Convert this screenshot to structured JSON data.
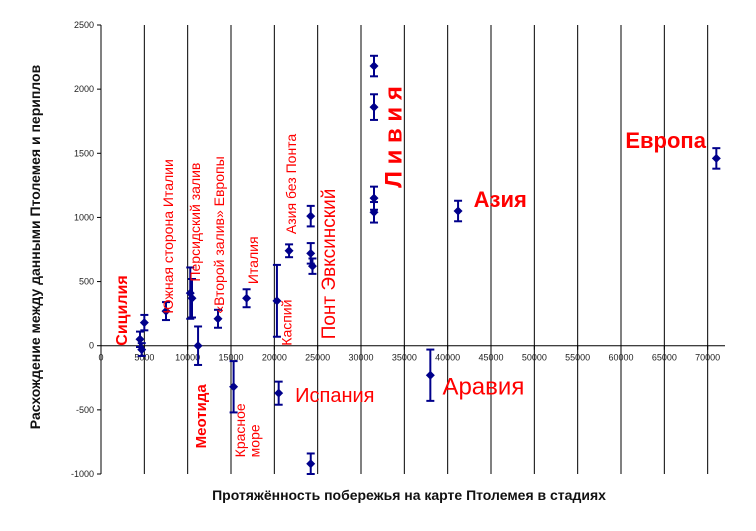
{
  "chart_data": {
    "type": "scatter",
    "xlabel": "Протяжённость побережья на карте Птолемея в стадиях",
    "ylabel": "Расхождение между данными Птолемея и периплов",
    "xlim": [
      0,
      72000
    ],
    "ylim": [
      -1000,
      2500
    ],
    "x_ticks": [
      0,
      5000,
      10000,
      15000,
      20000,
      25000,
      30000,
      35000,
      40000,
      45000,
      50000,
      55000,
      60000,
      65000,
      70000
    ],
    "y_ticks": [
      -1000,
      -500,
      0,
      500,
      1000,
      1500,
      2000,
      2500
    ],
    "x_tick_labels": [
      "0",
      "5000",
      "10000",
      "15000",
      "20000",
      "25000",
      "30000",
      "35000",
      "40000",
      "45000",
      "50000",
      "55000",
      "60000",
      "65000",
      "70000"
    ],
    "y_tick_labels": [
      "-1000",
      "-500",
      "0",
      "500",
      "1000",
      "1500",
      "2000",
      "2500"
    ],
    "grid": "vertical",
    "marker_color": "#00008b",
    "annotation_color": "#ff0000",
    "points": [
      {
        "x": 4500,
        "y": 50,
        "err": 60
      },
      {
        "x": 4700,
        "y": -30,
        "err": 50
      },
      {
        "x": 5000,
        "y": 180,
        "err": 60
      },
      {
        "x": 7500,
        "y": 270,
        "err": 70
      },
      {
        "x": 10300,
        "y": 410,
        "err": 200
      },
      {
        "x": 10500,
        "y": 370,
        "err": 150
      },
      {
        "x": 11200,
        "y": 0,
        "err": 150
      },
      {
        "x": 13500,
        "y": 210,
        "err": 70
      },
      {
        "x": 15300,
        "y": -320,
        "err": 200
      },
      {
        "x": 16800,
        "y": 370,
        "err": 70
      },
      {
        "x": 20300,
        "y": 350,
        "err": 280
      },
      {
        "x": 20500,
        "y": -370,
        "err": 90
      },
      {
        "x": 21700,
        "y": 740,
        "err": 50
      },
      {
        "x": 24200,
        "y": 1010,
        "err": 80
      },
      {
        "x": 24200,
        "y": 720,
        "err": 80
      },
      {
        "x": 24400,
        "y": 620,
        "err": 60
      },
      {
        "x": 24200,
        "y": -920,
        "err": 80
      },
      {
        "x": 31500,
        "y": 2180,
        "err": 80
      },
      {
        "x": 31500,
        "y": 1860,
        "err": 100
      },
      {
        "x": 31500,
        "y": 1150,
        "err": 90
      },
      {
        "x": 31500,
        "y": 1040,
        "err": 80
      },
      {
        "x": 38000,
        "y": -230,
        "err": 200
      },
      {
        "x": 41200,
        "y": 1050,
        "err": 80
      },
      {
        "x": 71000,
        "y": 1460,
        "err": 80
      }
    ],
    "annotations": [
      {
        "text": "Сицилия",
        "x": 3000,
        "y": 0,
        "rotate": true,
        "size": 16,
        "weight": "bold"
      },
      {
        "text": "Южная сторона Италии",
        "x": 8300,
        "y": 250,
        "rotate": true,
        "size": 14,
        "weight": "normal"
      },
      {
        "text": "Персидский залив",
        "x": 11400,
        "y": 500,
        "rotate": true,
        "size": 14,
        "weight": "normal"
      },
      {
        "text": "«Второй залив» Европы",
        "x": 14200,
        "y": 250,
        "rotate": true,
        "size": 14,
        "weight": "normal"
      },
      {
        "text": "Меотида",
        "x": 12100,
        "y": -800,
        "rotate": true,
        "size": 15,
        "weight": "bold"
      },
      {
        "text": "Красное",
        "x": 16600,
        "y": -870,
        "rotate": true,
        "size": 14,
        "weight": "normal"
      },
      {
        "text": "море",
        "x": 18300,
        "y": -870,
        "rotate": true,
        "size": 14,
        "weight": "normal"
      },
      {
        "text": "Италия",
        "x": 18100,
        "y": 480,
        "rotate": true,
        "size": 14,
        "weight": "normal"
      },
      {
        "text": "Азия без Понта",
        "x": 22500,
        "y": 870,
        "rotate": true,
        "size": 14,
        "weight": "normal"
      },
      {
        "text": "Каспий",
        "x": 22000,
        "y": 0,
        "rotate": true,
        "size": 14,
        "weight": "normal"
      },
      {
        "text": "Понт Эвксинский",
        "x": 27000,
        "y": 50,
        "rotate": true,
        "size": 19,
        "weight": "normal"
      },
      {
        "text": "Л и в и я",
        "x": 34700,
        "y": 1230,
        "rotate": true,
        "size": 24,
        "weight": "bold"
      },
      {
        "text": "Испания",
        "x": 22400,
        "y": -440,
        "rotate": false,
        "size": 20,
        "weight": "normal"
      },
      {
        "text": "Аравия",
        "x": 39400,
        "y": -380,
        "rotate": false,
        "size": 24,
        "weight": "normal"
      },
      {
        "text": "Азия",
        "x": 43000,
        "y": 1080,
        "rotate": false,
        "size": 22,
        "weight": "bold"
      },
      {
        "text": "Европа",
        "x": 60500,
        "y": 1540,
        "rotate": false,
        "size": 22,
        "weight": "bold"
      }
    ]
  }
}
